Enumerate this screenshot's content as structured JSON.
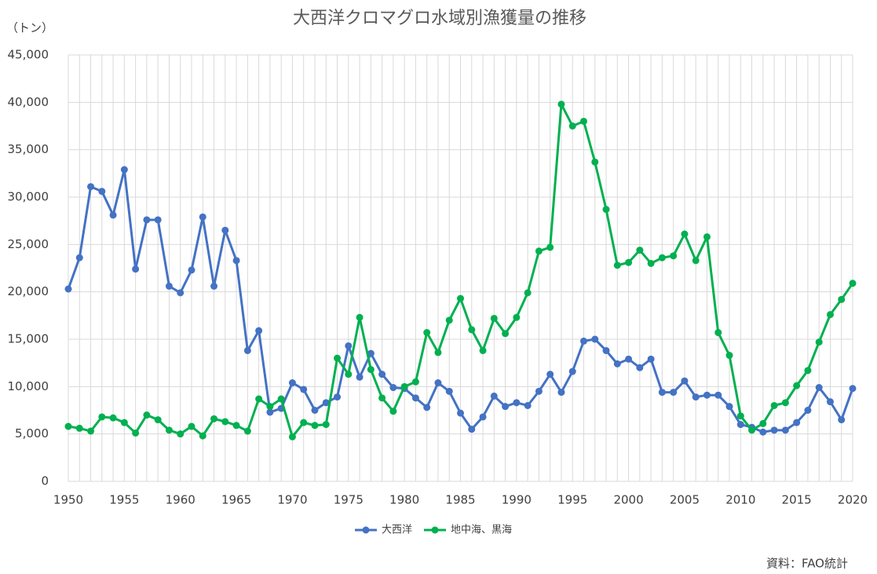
{
  "chart_data": {
    "type": "line",
    "title": "大西洋クロマグロ水域別漁獲量の推移",
    "y_unit": "（トン）",
    "source": "資料：FAO統計",
    "x": [
      1950,
      1951,
      1952,
      1953,
      1954,
      1955,
      1956,
      1957,
      1958,
      1959,
      1960,
      1961,
      1962,
      1963,
      1964,
      1965,
      1966,
      1967,
      1968,
      1969,
      1970,
      1971,
      1972,
      1973,
      1974,
      1975,
      1976,
      1977,
      1978,
      1979,
      1980,
      1981,
      1982,
      1983,
      1984,
      1985,
      1986,
      1987,
      1988,
      1989,
      1990,
      1991,
      1992,
      1993,
      1994,
      1995,
      1996,
      1997,
      1998,
      1999,
      2000,
      2001,
      2002,
      2003,
      2004,
      2005,
      2006,
      2007,
      2008,
      2009,
      2010,
      2011,
      2012,
      2013,
      2014,
      2015,
      2016,
      2017,
      2018,
      2019,
      2020
    ],
    "series": [
      {
        "name": "大西洋",
        "color": "#4472c4",
        "values": [
          20300,
          23600,
          31100,
          30600,
          28100,
          32900,
          22400,
          27600,
          27600,
          20600,
          19900,
          22300,
          27900,
          20600,
          26500,
          23300,
          13800,
          15900,
          7300,
          7700,
          10400,
          9700,
          7500,
          8300,
          8900,
          14300,
          11000,
          13500,
          11300,
          9900,
          9800,
          8800,
          7800,
          10400,
          9500,
          7200,
          5500,
          6800,
          9000,
          7900,
          8300,
          8000,
          9500,
          11300,
          9400,
          11600,
          14800,
          15000,
          13800,
          12400,
          12900,
          12000,
          12900,
          9400,
          9400,
          10600,
          8900,
          9100,
          9100,
          7900,
          6000,
          5700,
          5200,
          5400,
          5400,
          6200,
          7500,
          9900,
          8400,
          6500,
          9800
        ]
      },
      {
        "name": "地中海、黒海",
        "color": "#00b050",
        "values": [
          5800,
          5600,
          5300,
          6800,
          6700,
          6200,
          5100,
          7000,
          6500,
          5400,
          5000,
          5800,
          4800,
          6600,
          6300,
          5900,
          5300,
          8700,
          7900,
          8700,
          4700,
          6200,
          5900,
          6000,
          13000,
          11300,
          17300,
          11800,
          8800,
          7400,
          10000,
          10500,
          15700,
          13600,
          17000,
          19300,
          16000,
          13800,
          17200,
          15600,
          17300,
          19900,
          24300,
          24700,
          39800,
          37500,
          38000,
          33700,
          28700,
          22800,
          23100,
          24400,
          23000,
          23600,
          23800,
          26100,
          23300,
          25800,
          15700,
          13300,
          6900,
          5400,
          6100,
          8000,
          8300,
          10100,
          11700,
          14700,
          17600,
          19200,
          20900
        ]
      }
    ],
    "xlim": [
      1950,
      2020
    ],
    "xticks": [
      1950,
      1955,
      1960,
      1965,
      1970,
      1975,
      1980,
      1985,
      1990,
      1995,
      2000,
      2005,
      2010,
      2015,
      2020
    ],
    "ylim": [
      0,
      45000
    ],
    "yticks": [
      0,
      {
        "value": 5000,
        "label": "5,000"
      },
      {
        "value": 10000,
        "label": "10,000"
      },
      {
        "value": 15000,
        "label": "15,000"
      },
      {
        "value": 20000,
        "label": "20,000"
      },
      {
        "value": 25000,
        "label": "25,000"
      },
      {
        "value": 30000,
        "label": "30,000"
      },
      {
        "value": 35000,
        "label": "35,000"
      },
      {
        "value": 40000,
        "label": "40,000"
      },
      {
        "value": 45000,
        "label": "45,000"
      }
    ],
    "grid": true,
    "legend": "bottom"
  }
}
